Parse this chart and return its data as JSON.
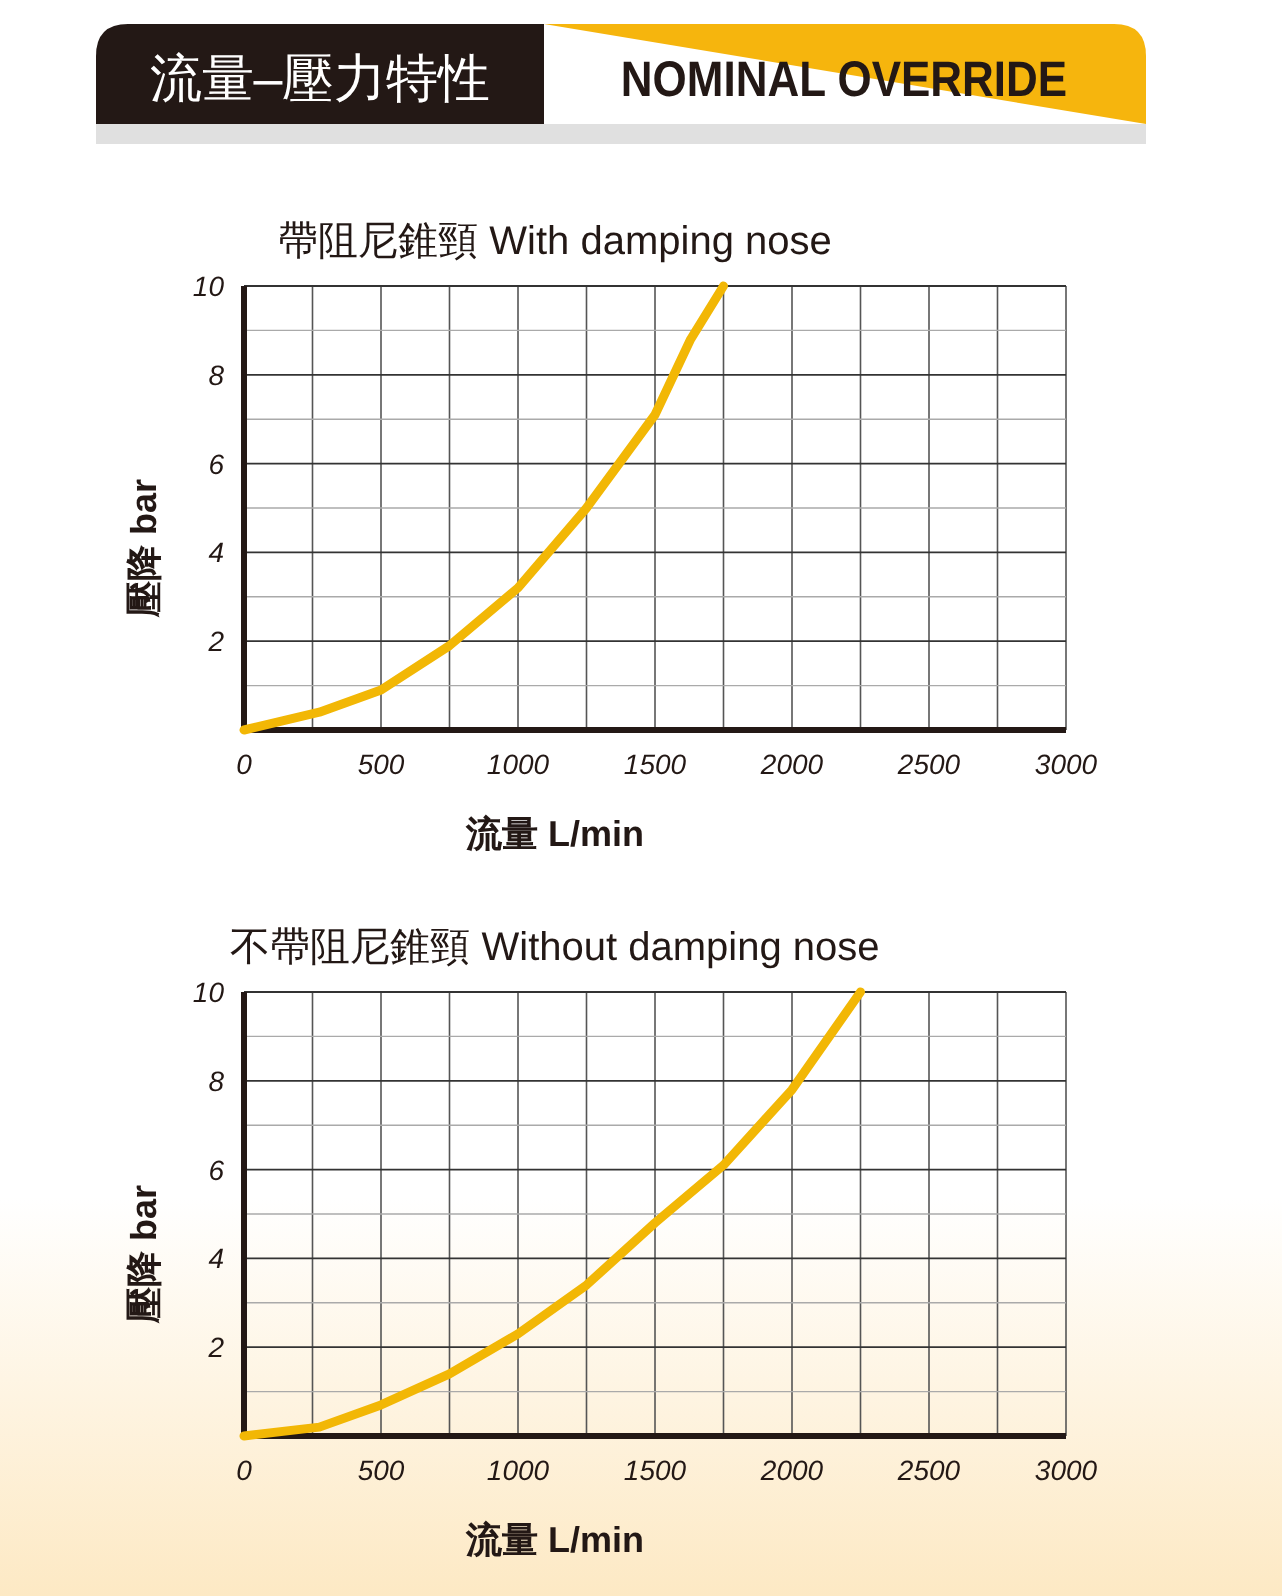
{
  "chart_data": [
    {
      "type": "other",
      "title": "流量–壓力特性",
      "subtitle": "NOMINAL OVERRIDE"
    },
    {
      "type": "line",
      "title": "帶阻尼錐頸  With damping nose",
      "xlabel": "流量 L/min",
      "ylabel": "壓降 bar",
      "x": [
        0,
        275,
        500,
        750,
        1000,
        1250,
        1500,
        1630,
        1750
      ],
      "series": [
        {
          "color": "#f2b705",
          "values": [
            0,
            0.4,
            0.9,
            1.9,
            3.2,
            5.0,
            7.1,
            8.8,
            10
          ]
        }
      ],
      "xlim": [
        0,
        3000
      ],
      "ylim": [
        0,
        10
      ],
      "xticks": [
        0,
        {
          "value": 250,
          "label": null
        },
        500,
        {
          "value": 750,
          "label": null
        },
        1000,
        {
          "value": 1250,
          "label": null
        },
        1500,
        {
          "value": 1750,
          "label": null
        },
        2000,
        {
          "value": 2250,
          "label": null
        },
        2500,
        {
          "value": 2750,
          "label": null
        },
        3000
      ],
      "yticks": [
        {
          "value": 1,
          "label": null
        },
        2,
        {
          "value": 3,
          "label": null
        },
        4,
        {
          "value": 5,
          "label": null
        },
        6,
        {
          "value": 7,
          "label": null
        },
        8,
        {
          "value": 9,
          "label": null
        },
        10
      ],
      "grid": true
    },
    {
      "type": "line",
      "title": "不帶阻尼錐頸  Without damping nose",
      "xlabel": "流量 L/min",
      "ylabel": "壓降 bar",
      "x": [
        0,
        275,
        500,
        750,
        1000,
        1250,
        1500,
        1750,
        2000,
        2250
      ],
      "series": [
        {
          "color": "#f2b705",
          "values": [
            0,
            0.2,
            0.7,
            1.4,
            2.3,
            3.4,
            4.8,
            6.1,
            7.8,
            10
          ]
        }
      ],
      "xlim": [
        0,
        3000
      ],
      "ylim": [
        0,
        10
      ],
      "xticks": [
        0,
        {
          "value": 250,
          "label": null
        },
        500,
        {
          "value": 750,
          "label": null
        },
        1000,
        {
          "value": 1250,
          "label": null
        },
        1500,
        {
          "value": 1750,
          "label": null
        },
        2000,
        {
          "value": 2250,
          "label": null
        },
        2500,
        {
          "value": 2750,
          "label": null
        },
        3000
      ],
      "yticks": [
        {
          "value": 1,
          "label": null
        },
        2,
        {
          "value": 3,
          "label": null
        },
        4,
        {
          "value": 5,
          "label": null
        },
        6,
        {
          "value": 7,
          "label": null
        },
        8,
        {
          "value": 9,
          "label": null
        },
        10
      ],
      "grid": true
    }
  ]
}
